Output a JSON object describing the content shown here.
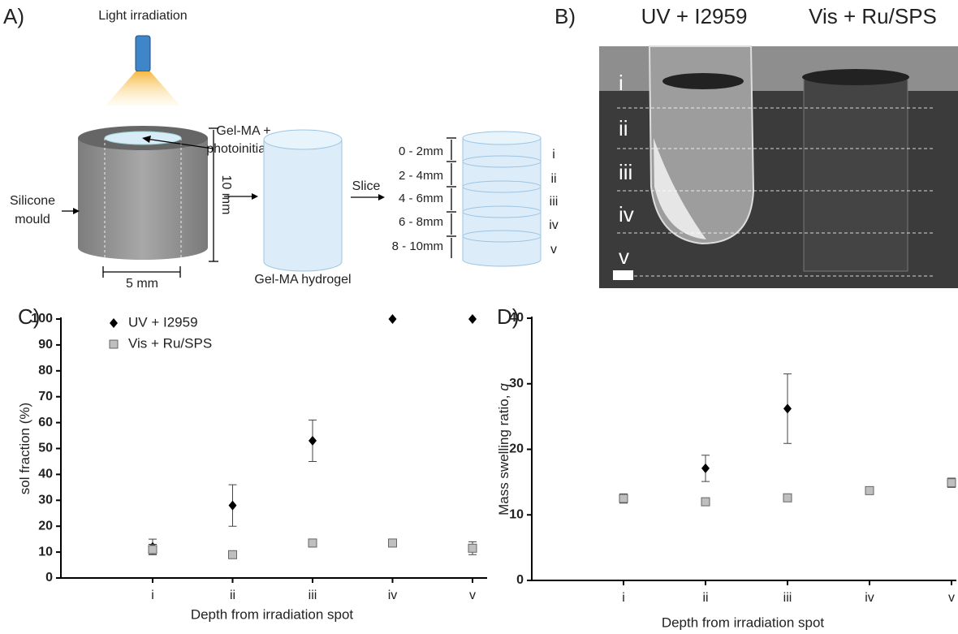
{
  "panel_a": {
    "label": "A)",
    "light": "Light irradiation",
    "resin": [
      "Gel-MA +",
      "photoinitiator"
    ],
    "mould": [
      "Silicone",
      "mould"
    ],
    "height": "10 mm",
    "diameter": "5 mm",
    "hydrogel": "Gel-MA hydrogel",
    "slice": "Slice",
    "slice_ranges": [
      "0 - 2mm",
      "2 - 4mm",
      "4 - 6mm",
      "6 - 8mm",
      "8 - 10mm"
    ],
    "slice_names": [
      "i",
      "ii",
      "iii",
      "iv",
      "v"
    ]
  },
  "panel_b": {
    "label": "B)",
    "columns": [
      "UV + I2959",
      "Vis + Ru/SPS"
    ],
    "depth_names": [
      "i",
      "ii",
      "iii",
      "iv",
      "v"
    ]
  },
  "chart_data": [
    {
      "type": "scatter",
      "label": "C)",
      "x_label": "Depth from irradiation spot",
      "y_label": "sol fraction  (%)",
      "categories": [
        "i",
        "ii",
        "iii",
        "iv",
        "v"
      ],
      "ylim": [
        0,
        100
      ],
      "yticks": [
        0,
        10,
        20,
        30,
        40,
        50,
        60,
        70,
        80,
        90,
        100
      ],
      "legend": "upper left",
      "series": [
        {
          "name": "UV + I2959",
          "color": "#000000",
          "marker": "diamond",
          "values": [
            12,
            28,
            53,
            100,
            100
          ],
          "errors": [
            3,
            8,
            8,
            null,
            null
          ]
        },
        {
          "name": "Vis  + Ru/SPS",
          "color": "#bfbfbf",
          "marker": "square",
          "values": [
            11,
            9,
            13.5,
            13.5,
            11.5
          ],
          "errors": [
            2,
            1,
            1.5,
            0.5,
            2.5
          ]
        }
      ]
    },
    {
      "type": "scatter",
      "label": "D)",
      "x_label": "Depth from irradiation spot",
      "y_label": "Mass swelling ratio,",
      "y_label_symbol": "q",
      "categories": [
        "i",
        "ii",
        "iii",
        "iv",
        "v"
      ],
      "ylim": [
        0,
        40
      ],
      "yticks": [
        0,
        10,
        20,
        30,
        40
      ],
      "series": [
        {
          "color": "#000000",
          "marker": "diamond",
          "values": [
            null,
            17.1,
            26.2,
            null,
            null
          ],
          "errors": [
            null,
            2,
            5.3,
            null,
            null
          ]
        },
        {
          "color": "#bfbfbf",
          "marker": "square",
          "values": [
            12.5,
            12,
            12.6,
            13.7,
            14.9
          ],
          "errors": [
            0.7,
            0.3,
            0.5,
            0.3,
            0.7
          ]
        }
      ]
    }
  ]
}
